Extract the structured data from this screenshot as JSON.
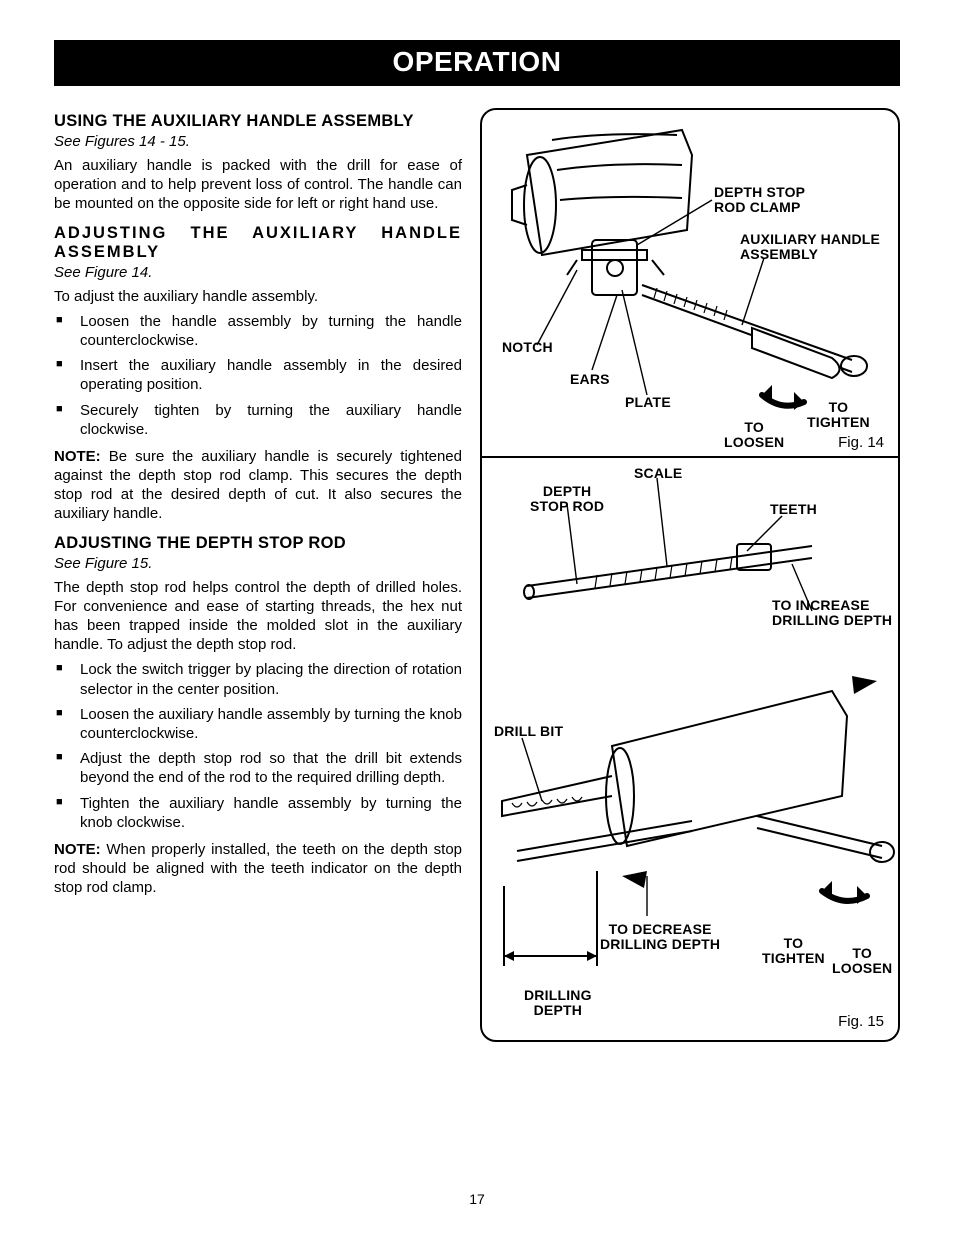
{
  "banner": "OPERATION",
  "page_number": "17",
  "left": {
    "s1": {
      "heading": "USING THE AUXILIARY HANDLE ASSEMBLY",
      "see": "See Figures 14 - 15.",
      "p1": "An auxiliary handle is packed with the drill for ease of operation and to help prevent loss of control. The handle can be mounted on the opposite side for left or right hand use."
    },
    "s2": {
      "heading": "ADJUSTING THE AUXILIARY HANDLE ASSEMBLY",
      "see": "See Figure 14.",
      "p1": "To adjust the auxiliary handle assembly.",
      "b1": "Loosen the handle assembly by turning the handle counterclockwise.",
      "b2": "Insert the auxiliary handle assembly in the desired operating position.",
      "b3": "Securely tighten by turning the auxiliary handle clockwise.",
      "note": "Be sure the auxiliary handle is securely tightened against the depth stop rod clamp. This secures the depth stop rod at the desired depth of cut. It also secures the auxiliary handle."
    },
    "s3": {
      "heading": "ADJUSTING THE DEPTH STOP ROD",
      "see": "See Figure 15.",
      "p1": "The depth stop rod helps control the depth of drilled holes. For convenience and ease of starting threads, the hex nut has been trapped inside the molded slot in the auxiliary handle. To adjust the depth stop rod.",
      "b1": "Lock the switch trigger by placing the direction of rotation selector in the center position.",
      "b2": "Loosen the auxiliary handle assembly by turning the knob counterclockwise.",
      "b3": "Adjust the depth stop rod so that the drill bit extends beyond the end of the rod to the required drilling depth.",
      "b4": "Tighten the auxiliary handle assembly by turning the knob clockwise.",
      "note": "When properly installed, the teeth on the depth stop rod should be aligned with the teeth indicator on the depth stop rod clamp."
    },
    "note_label": "NOTE:"
  },
  "fig14": {
    "caption": "Fig. 14",
    "labels": {
      "depth_stop_rod_clamp": "DEPTH STOP\nROD CLAMP",
      "aux_handle": "AUXILIARY HANDLE\nASSEMBLY",
      "notch": "NOTCH",
      "ears": "EARS",
      "plate": "PLATE",
      "to_tighten": "TO\nTIGHTEN",
      "to_loosen": "TO\nLOOSEN"
    }
  },
  "fig15": {
    "caption": "Fig. 15",
    "labels": {
      "scale": "SCALE",
      "depth_stop_rod": "DEPTH\nSTOP ROD",
      "teeth": "TEETH",
      "to_increase": "TO INCREASE\nDRILLING DEPTH",
      "drill_bit": "DRILL BIT",
      "to_decrease": "TO DECREASE\nDRILLING DEPTH",
      "to_tighten": "TO\nTIGHTEN",
      "to_loosen": "TO\nLOOSEN",
      "drilling_depth": "DRILLING\nDEPTH"
    }
  }
}
